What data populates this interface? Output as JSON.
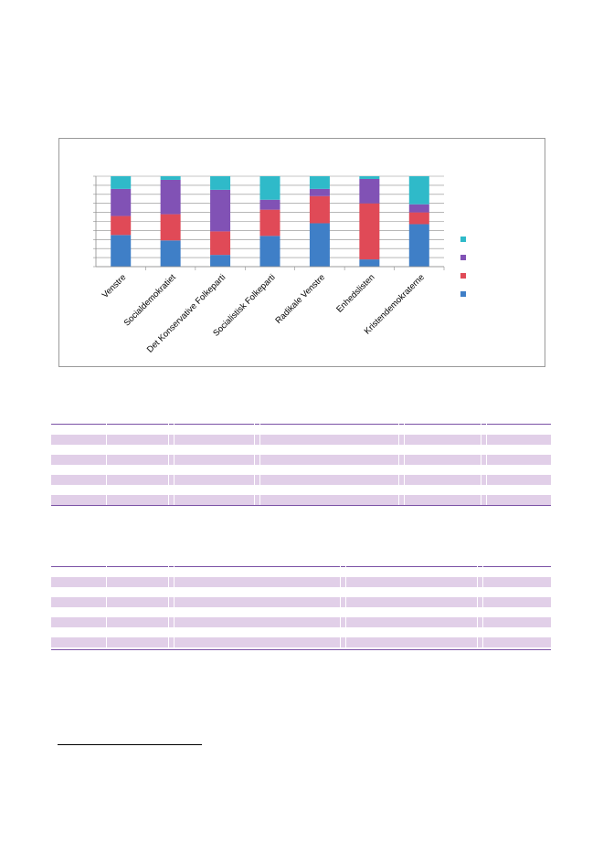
{
  "chart_data": {
    "type": "bar",
    "stacked": "percent",
    "categories": [
      "Venstre",
      "Socialdemokratiet",
      "Det Konservative Folkeparti",
      "Socialistisk Folkeparti",
      "Radikale Venstre",
      "Enhedslisten",
      "Kristendemokraterne"
    ],
    "series": [
      {
        "color": "#3f7fc7",
        "values": [
          35,
          29,
          13,
          34,
          48,
          8,
          47
        ]
      },
      {
        "color": "#e04a57",
        "values": [
          21,
          29,
          26,
          29,
          30,
          62,
          13
        ]
      },
      {
        "color": "#8152b5",
        "values": [
          30,
          38,
          46,
          11,
          8,
          27,
          9
        ]
      },
      {
        "color": "#2fbac9",
        "values": [
          14,
          4,
          15,
          26,
          14,
          3,
          31
        ]
      }
    ],
    "ylim": [
      0,
      100
    ],
    "grid": true,
    "legend": "right"
  },
  "tables": [
    {
      "rows": 8,
      "shaded_rows": [
        0,
        2,
        4,
        6
      ]
    },
    {
      "rows": 7,
      "shaded_rows": [
        0,
        2,
        4,
        6
      ]
    }
  ],
  "colors": {
    "table_rule": "#7b52a6",
    "table_shade": "#e1cfe8",
    "chart_border": "#9a9a9a"
  }
}
